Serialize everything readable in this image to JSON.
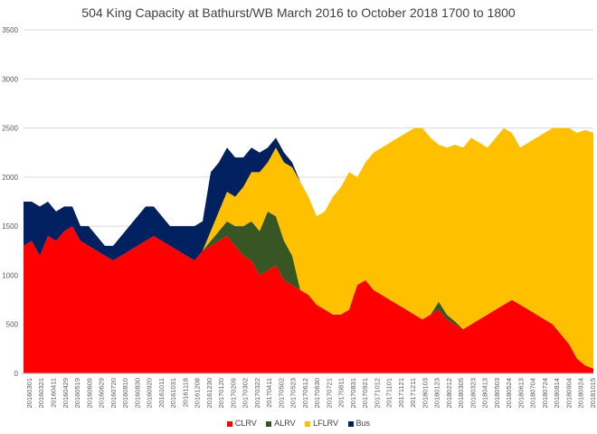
{
  "chart_data": {
    "type": "area",
    "stacked": true,
    "title": "504 King Capacity at Bathurst/WB March 2016 to October 2018  1700 to 1800",
    "ylim": [
      0,
      3500
    ],
    "yticks": [
      "0",
      "500",
      "1000",
      "1500",
      "2000",
      "2500",
      "3000",
      "3500"
    ],
    "ytick_values": [
      0,
      500,
      1000,
      1500,
      2000,
      2500,
      3000,
      3500
    ],
    "grid": true,
    "legend_position": "bottom",
    "x_ticks": [
      "20160301",
      "20160321",
      "20160411",
      "20160429",
      "20160519",
      "20160609",
      "20160629",
      "20160720",
      "20160810",
      "20160830",
      "20160920",
      "20161011",
      "20161031",
      "20161118",
      "20161208",
      "20161230",
      "20170120",
      "20170209",
      "20170302",
      "20170322",
      "20170411",
      "20170502",
      "20170523",
      "20170612",
      "20170630",
      "20170721",
      "20170811",
      "20170831",
      "20170921",
      "20171012",
      "20171101",
      "20171121",
      "20171211",
      "20180103",
      "20180123",
      "20180212",
      "20180305",
      "20180323",
      "20180413",
      "20180503",
      "20180524",
      "20180613",
      "20180704",
      "20180724",
      "20180814",
      "20180904",
      "20180924",
      "20181015"
    ],
    "series": [
      {
        "name": "CLRV",
        "color": "#ff0000",
        "values": [
          1300,
          1350,
          1200,
          1400,
          1350,
          1450,
          1500,
          1350,
          1300,
          1250,
          1200,
          1150,
          1200,
          1250,
          1300,
          1350,
          1400,
          1350,
          1300,
          1250,
          1200,
          1150,
          1250,
          1300,
          1350,
          1400,
          1300,
          1200,
          1150,
          1000,
          1050,
          1100,
          950,
          900,
          850,
          800,
          700,
          650,
          600,
          600,
          650,
          900,
          950,
          850,
          800,
          750,
          700,
          650,
          600,
          550,
          600,
          650,
          550,
          500,
          450,
          500,
          550,
          600,
          650,
          700,
          750,
          700,
          650,
          600,
          550,
          500,
          400,
          300,
          150,
          80,
          50
        ]
      },
      {
        "name": "ALRV",
        "color": "#375623",
        "values": [
          0,
          0,
          0,
          0,
          0,
          0,
          0,
          0,
          0,
          0,
          0,
          0,
          0,
          0,
          0,
          0,
          0,
          0,
          0,
          0,
          0,
          0,
          0,
          50,
          100,
          150,
          200,
          300,
          400,
          450,
          600,
          500,
          400,
          300,
          0,
          0,
          0,
          0,
          0,
          0,
          0,
          0,
          0,
          0,
          0,
          0,
          0,
          0,
          0,
          0,
          0,
          80,
          50,
          30,
          0,
          0,
          0,
          0,
          0,
          0,
          0,
          0,
          0,
          0,
          0,
          0,
          0,
          0,
          0,
          0,
          0
        ]
      },
      {
        "name": "LFLRV",
        "color": "#ffc000",
        "values": [
          0,
          0,
          0,
          0,
          0,
          0,
          0,
          0,
          0,
          0,
          0,
          0,
          0,
          0,
          0,
          0,
          0,
          0,
          0,
          0,
          0,
          0,
          0,
          100,
          200,
          300,
          300,
          400,
          500,
          600,
          500,
          700,
          800,
          900,
          1100,
          1000,
          900,
          1000,
          1200,
          1300,
          1400,
          1100,
          1200,
          1400,
          1500,
          1600,
          1700,
          1800,
          1900,
          1950,
          1800,
          1600,
          1700,
          1800,
          1850,
          1900,
          1800,
          1700,
          1750,
          1800,
          1700,
          1600,
          1700,
          1800,
          1900,
          2000,
          2100,
          2200,
          2300,
          2400,
          2400
        ]
      },
      {
        "name": "Bus",
        "color": "#002060",
        "values": [
          450,
          400,
          500,
          350,
          300,
          250,
          200,
          150,
          200,
          150,
          100,
          150,
          200,
          250,
          300,
          350,
          300,
          250,
          200,
          250,
          300,
          350,
          300,
          600,
          500,
          450,
          400,
          300,
          250,
          200,
          150,
          100,
          100,
          50,
          0,
          0,
          0,
          0,
          0,
          0,
          0,
          0,
          0,
          0,
          0,
          0,
          0,
          0,
          0,
          0,
          0,
          0,
          0,
          0,
          0,
          0,
          0,
          0,
          0,
          0,
          0,
          0,
          0,
          0,
          0,
          0,
          0,
          0,
          0,
          0,
          0
        ]
      }
    ]
  }
}
